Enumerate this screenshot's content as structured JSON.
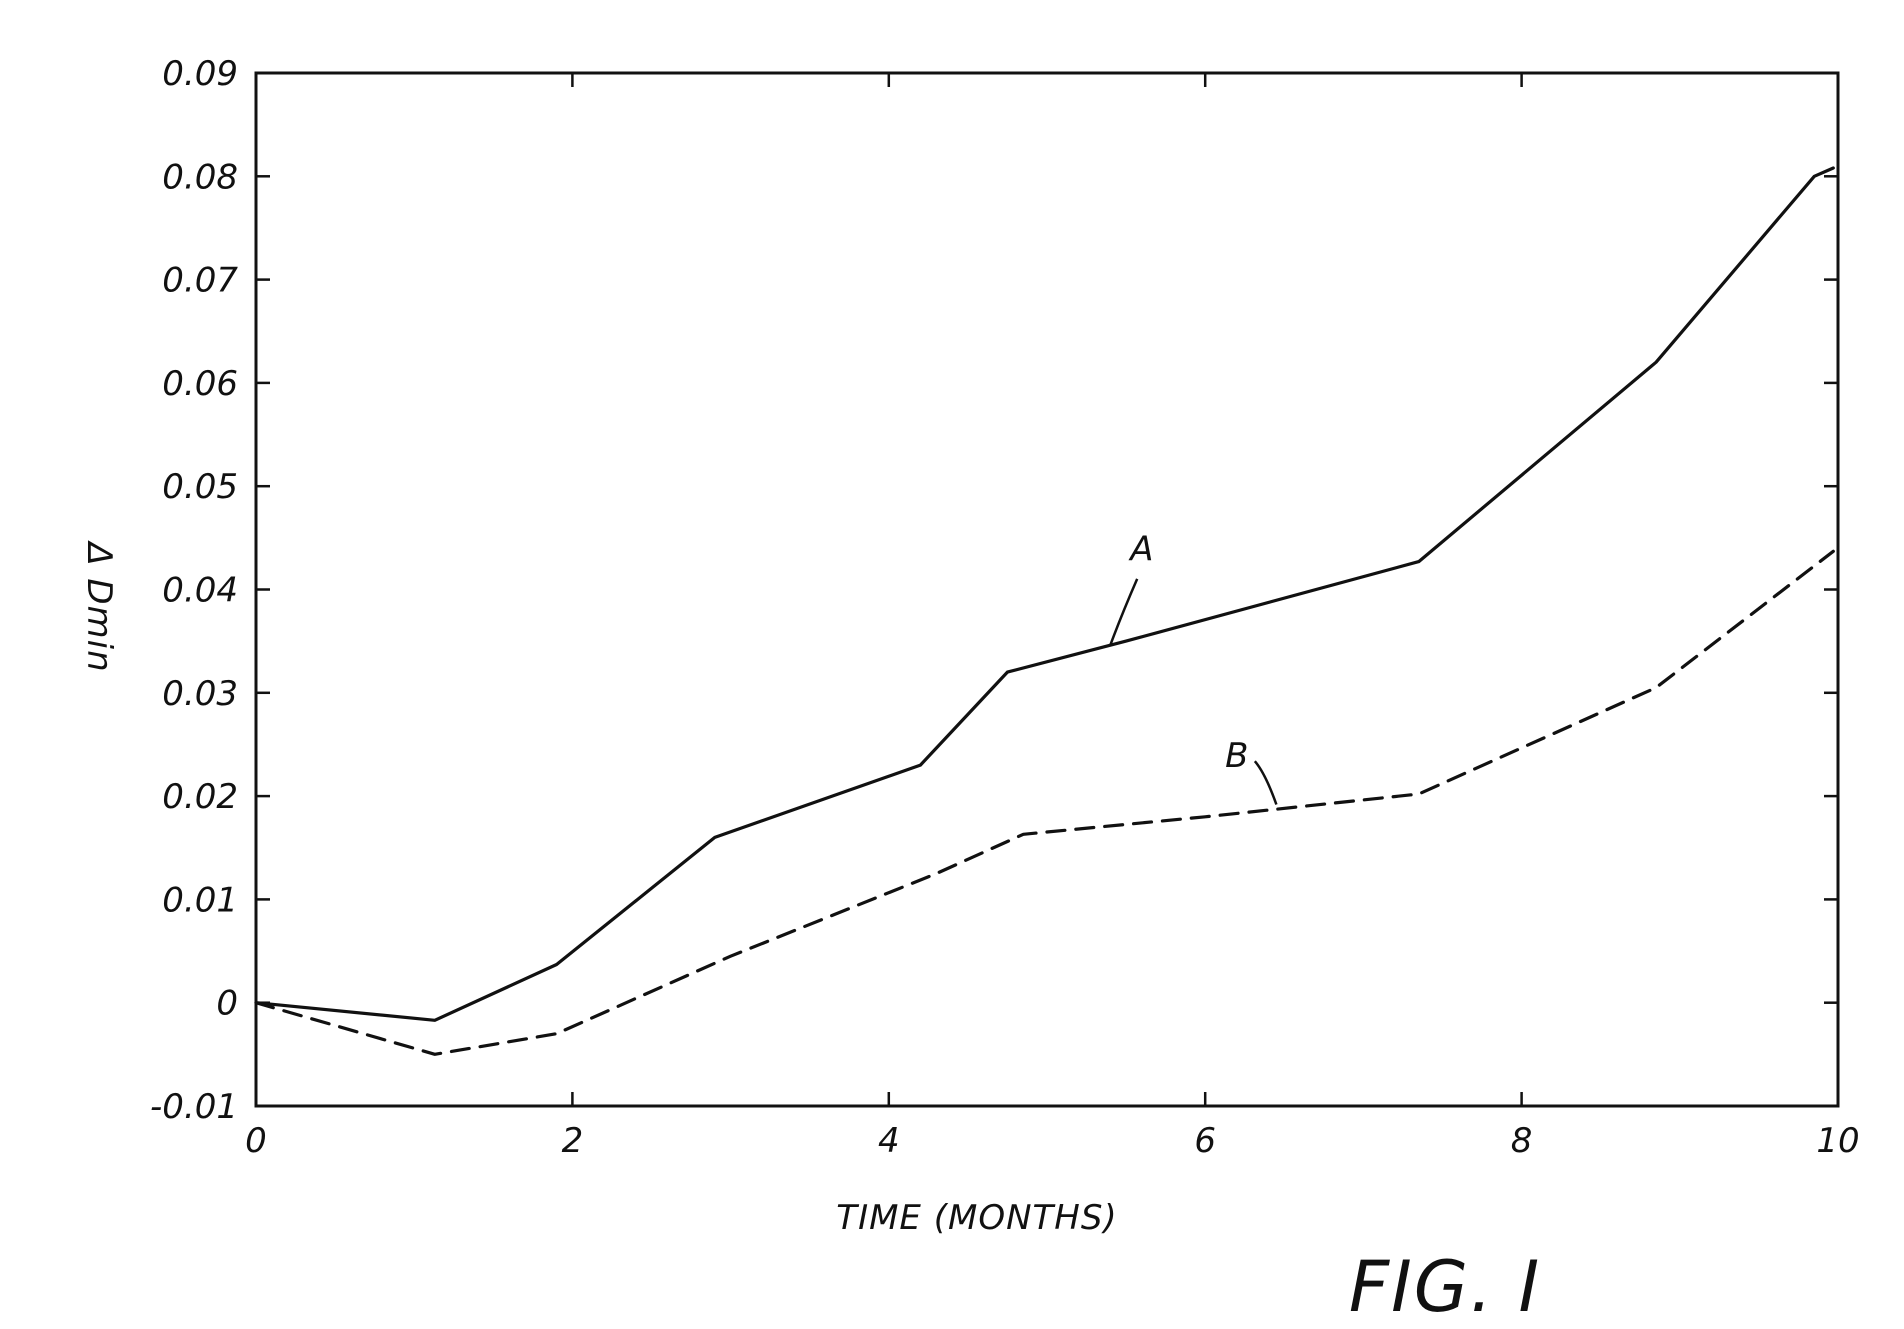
{
  "chart_data": {
    "type": "line",
    "title": "",
    "xlabel": "TIME (MONTHS)",
    "ylabel": "Δ Dmin",
    "xlim": [
      0,
      10
    ],
    "ylim": [
      -0.01,
      0.09
    ],
    "x_ticks": [
      0,
      2,
      4,
      6,
      8,
      10
    ],
    "y_ticks": [
      -0.01,
      0,
      0.01,
      0.02,
      0.03,
      0.04,
      0.05,
      0.06,
      0.07,
      0.08,
      0.09
    ],
    "x_tick_labels": [
      "0",
      "2",
      "4",
      "6",
      "8",
      "10"
    ],
    "y_tick_labels": [
      "-0.01",
      "0",
      "0.01",
      "0.02",
      "0.03",
      "0.04",
      "0.05",
      "0.06",
      "0.07",
      "0.08",
      "0.09"
    ],
    "grid": false,
    "series": [
      {
        "name": "A",
        "style": "solid",
        "color": "#111111",
        "x": [
          0,
          1.13,
          1.9,
          2.9,
          4.2,
          4.75,
          5.5,
          7.35,
          8.85,
          9.85,
          9.97
        ],
        "y": [
          0,
          -0.0017,
          0.0037,
          0.016,
          0.023,
          0.032,
          0.035,
          0.0427,
          0.062,
          0.08,
          0.0808
        ]
      },
      {
        "name": "B",
        "style": "dashed",
        "color": "#111111",
        "x": [
          0,
          1.13,
          1.9,
          3.0,
          4.3,
          4.85,
          6.0,
          7.35,
          8.85,
          9.97
        ],
        "y": [
          0,
          -0.005,
          -0.003,
          0.0045,
          0.0125,
          0.0163,
          0.018,
          0.0202,
          0.0305,
          0.0437
        ]
      }
    ],
    "annotations": [
      "A",
      "B"
    ]
  },
  "figure_label": "FIG. I"
}
